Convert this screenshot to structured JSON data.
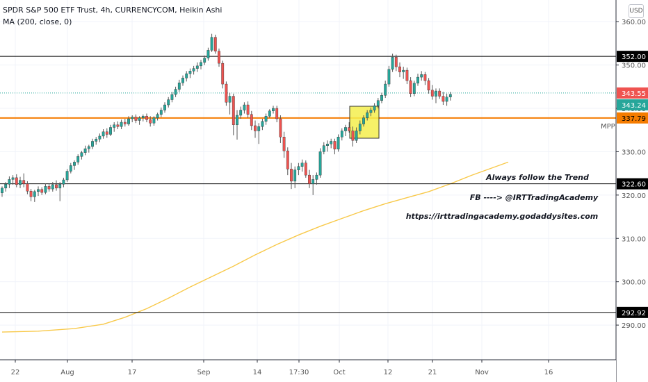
{
  "header": {
    "title": "SPDR S&P 500 ETF Trust, 4h, CURRENCYCOM, Heikin Ashi",
    "indicator": "MA (200, close, 0)",
    "currency_button": "USD"
  },
  "colors": {
    "up": "#26a69a",
    "down": "#ef5350",
    "ma": "#f8c94a",
    "mpp_line": "#f57c00",
    "hline": "#000000",
    "box_fill": "#f5ef4d",
    "grid": "#f0f3fa"
  },
  "chart_data": {
    "type": "candlestick",
    "title": "SPDR S&P 500 ETF Trust, 4h, CURRENCYCOM, Heikin Ashi",
    "ylim": [
      282,
      365
    ],
    "y_ticks": [
      "360.00",
      "350.00",
      "340.00",
      "330.00",
      "320.00",
      "310.00",
      "300.00",
      "290.00"
    ],
    "x_ticks": [
      "22",
      "Aug",
      "17",
      "Sep",
      "14",
      "17:30",
      "Oct",
      "12",
      "21",
      "Nov",
      "16"
    ],
    "horizontal_lines": [
      {
        "label": "352.00",
        "value": 352.0,
        "style": "black"
      },
      {
        "label": "322.60",
        "value": 322.6,
        "style": "black"
      },
      {
        "label": "292.92",
        "value": 292.92,
        "style": "black"
      },
      {
        "label": "337.79",
        "value": 337.79,
        "style": "mpp",
        "name": "MPP"
      }
    ],
    "price_labels": [
      {
        "label": "343.55",
        "value": 343.55,
        "color": "#ef5350"
      },
      {
        "label": "343.24",
        "value": 343.24,
        "color": "#26a69a"
      }
    ],
    "ohlc": [
      [
        320.5,
        322.0,
        319.6,
        321.6
      ],
      [
        321.6,
        323.0,
        320.8,
        322.5
      ],
      [
        322.5,
        324.3,
        321.6,
        323.6
      ],
      [
        323.6,
        324.6,
        322.4,
        324.0
      ],
      [
        324.0,
        324.8,
        321.8,
        322.4
      ],
      [
        322.4,
        324.2,
        321.6,
        323.4
      ],
      [
        323.4,
        325.0,
        321.8,
        322.6
      ],
      [
        322.6,
        323.2,
        320.2,
        320.9
      ],
      [
        320.9,
        321.4,
        318.6,
        319.6
      ],
      [
        319.6,
        321.2,
        318.4,
        320.8
      ],
      [
        320.8,
        322.0,
        319.8,
        321.3
      ],
      [
        321.3,
        321.8,
        320.0,
        320.6
      ],
      [
        320.6,
        322.6,
        320.2,
        322.0
      ],
      [
        322.0,
        322.6,
        320.8,
        321.4
      ],
      [
        321.4,
        323.0,
        320.8,
        322.4
      ],
      [
        322.4,
        323.4,
        321.0,
        321.6
      ],
      [
        321.6,
        323.0,
        318.6,
        322.5
      ],
      [
        322.5,
        324.0,
        321.8,
        323.5
      ],
      [
        323.5,
        326.0,
        323.0,
        325.5
      ],
      [
        325.5,
        327.4,
        325.0,
        326.8
      ],
      [
        326.8,
        328.0,
        325.8,
        327.6
      ],
      [
        327.6,
        329.4,
        327.0,
        328.9
      ],
      [
        328.9,
        330.2,
        328.2,
        329.8
      ],
      [
        329.8,
        331.4,
        329.2,
        330.7
      ],
      [
        330.7,
        331.6,
        329.8,
        331.2
      ],
      [
        331.2,
        333.0,
        330.6,
        332.4
      ],
      [
        332.4,
        333.4,
        331.6,
        332.9
      ],
      [
        332.9,
        334.2,
        332.2,
        333.6
      ],
      [
        333.6,
        335.2,
        333.0,
        334.6
      ],
      [
        334.6,
        335.4,
        333.2,
        334.0
      ],
      [
        334.0,
        336.2,
        333.6,
        335.6
      ],
      [
        335.6,
        336.8,
        334.6,
        336.2
      ],
      [
        336.2,
        337.0,
        335.2,
        335.8
      ],
      [
        335.8,
        337.4,
        335.2,
        336.8
      ],
      [
        336.8,
        337.6,
        335.8,
        336.4
      ],
      [
        336.4,
        338.2,
        336.0,
        337.6
      ],
      [
        337.6,
        338.4,
        336.8,
        338.0
      ],
      [
        338.0,
        338.6,
        336.6,
        337.2
      ],
      [
        337.2,
        338.2,
        336.2,
        337.8
      ],
      [
        337.8,
        338.6,
        337.0,
        338.2
      ],
      [
        338.2,
        338.8,
        336.8,
        337.4
      ],
      [
        337.4,
        338.2,
        335.8,
        336.6
      ],
      [
        336.6,
        338.2,
        336.0,
        337.8
      ],
      [
        337.8,
        339.0,
        337.2,
        338.6
      ],
      [
        338.6,
        340.2,
        338.0,
        339.6
      ],
      [
        339.6,
        341.4,
        339.0,
        340.8
      ],
      [
        340.8,
        342.6,
        340.2,
        342.0
      ],
      [
        342.0,
        343.8,
        341.4,
        343.2
      ],
      [
        343.2,
        345.0,
        342.6,
        344.4
      ],
      [
        344.4,
        346.6,
        343.8,
        345.9
      ],
      [
        345.9,
        347.6,
        345.2,
        347.0
      ],
      [
        347.0,
        348.6,
        346.2,
        348.0
      ],
      [
        348.0,
        349.2,
        347.0,
        348.6
      ],
      [
        348.6,
        349.8,
        347.8,
        349.2
      ],
      [
        349.2,
        350.6,
        348.4,
        349.8
      ],
      [
        349.8,
        351.2,
        349.0,
        350.6
      ],
      [
        350.6,
        352.2,
        350.0,
        351.6
      ],
      [
        351.6,
        354.0,
        351.0,
        353.4
      ],
      [
        353.4,
        357.2,
        353.0,
        356.4
      ],
      [
        356.4,
        357.0,
        352.6,
        353.2
      ],
      [
        353.2,
        353.8,
        349.6,
        350.4
      ],
      [
        350.4,
        351.0,
        344.6,
        345.6
      ],
      [
        345.6,
        346.2,
        340.6,
        341.4
      ],
      [
        341.4,
        343.6,
        338.6,
        342.8
      ],
      [
        342.8,
        343.4,
        333.8,
        336.2
      ],
      [
        336.2,
        339.6,
        332.8,
        338.4
      ],
      [
        338.4,
        340.4,
        337.6,
        339.6
      ],
      [
        339.6,
        341.4,
        338.8,
        340.8
      ],
      [
        340.8,
        341.6,
        337.8,
        338.6
      ],
      [
        338.6,
        339.4,
        335.0,
        336.0
      ],
      [
        336.0,
        337.2,
        333.2,
        334.8
      ],
      [
        334.8,
        336.6,
        331.8,
        335.8
      ],
      [
        335.8,
        337.6,
        335.0,
        337.0
      ],
      [
        337.0,
        338.8,
        336.2,
        338.2
      ],
      [
        338.2,
        339.8,
        337.8,
        339.4
      ],
      [
        339.4,
        340.6,
        338.8,
        340.0
      ],
      [
        340.0,
        340.6,
        336.8,
        337.6
      ],
      [
        337.6,
        338.4,
        332.0,
        333.4
      ],
      [
        333.4,
        334.6,
        328.6,
        330.2
      ],
      [
        330.2,
        331.0,
        324.6,
        326.0
      ],
      [
        326.0,
        327.4,
        321.4,
        323.2
      ],
      [
        323.2,
        326.6,
        321.6,
        325.8
      ],
      [
        325.8,
        327.4,
        324.6,
        326.6
      ],
      [
        326.6,
        328.2,
        325.4,
        327.4
      ],
      [
        327.4,
        328.0,
        324.0,
        324.6
      ],
      [
        324.6,
        325.8,
        321.6,
        322.6
      ],
      [
        322.6,
        324.6,
        320.0,
        323.6
      ],
      [
        323.6,
        325.2,
        322.4,
        324.6
      ],
      [
        324.6,
        330.8,
        324.0,
        330.0
      ],
      [
        330.0,
        332.2,
        329.4,
        331.4
      ],
      [
        331.4,
        332.6,
        330.0,
        331.8
      ],
      [
        331.8,
        333.0,
        330.8,
        332.4
      ],
      [
        332.4,
        333.0,
        329.4,
        330.6
      ],
      [
        330.6,
        334.0,
        330.0,
        333.4
      ],
      [
        333.4,
        335.4,
        332.6,
        334.8
      ],
      [
        334.8,
        336.2,
        333.6,
        335.6
      ],
      [
        335.6,
        336.8,
        334.4,
        334.8
      ],
      [
        334.8,
        335.8,
        331.2,
        332.6
      ],
      [
        332.6,
        335.6,
        332.0,
        334.8
      ],
      [
        334.8,
        337.2,
        334.0,
        336.4
      ],
      [
        336.4,
        338.4,
        335.8,
        337.8
      ],
      [
        337.8,
        339.6,
        337.2,
        339.0
      ],
      [
        339.0,
        340.2,
        338.2,
        339.6
      ],
      [
        339.6,
        341.2,
        339.0,
        340.6
      ],
      [
        340.6,
        342.4,
        340.0,
        341.8
      ],
      [
        341.8,
        343.6,
        341.2,
        343.0
      ],
      [
        343.0,
        346.4,
        342.4,
        345.6
      ],
      [
        345.6,
        349.8,
        345.0,
        349.0
      ],
      [
        349.0,
        352.6,
        348.4,
        351.8
      ],
      [
        351.8,
        352.4,
        348.6,
        349.6
      ],
      [
        349.6,
        350.6,
        347.2,
        348.4
      ],
      [
        348.4,
        349.6,
        346.8,
        348.8
      ],
      [
        348.8,
        349.4,
        345.6,
        346.4
      ],
      [
        346.4,
        347.2,
        342.6,
        343.4
      ],
      [
        343.4,
        346.4,
        342.8,
        345.8
      ],
      [
        345.8,
        348.0,
        345.2,
        347.2
      ],
      [
        347.2,
        348.6,
        346.4,
        347.8
      ],
      [
        347.8,
        348.4,
        345.4,
        346.4
      ],
      [
        346.4,
        347.0,
        343.4,
        344.2
      ],
      [
        344.2,
        345.4,
        342.0,
        342.8
      ],
      [
        342.8,
        344.6,
        341.2,
        344.0
      ],
      [
        344.0,
        344.6,
        342.2,
        342.8
      ],
      [
        342.8,
        343.8,
        340.8,
        341.6
      ],
      [
        341.6,
        343.4,
        340.6,
        342.6
      ],
      [
        342.6,
        343.8,
        341.8,
        343.24
      ]
    ],
    "ma_200": [
      [
        0,
        288.4
      ],
      [
        10,
        288.6
      ],
      [
        20,
        289.2
      ],
      [
        28,
        290.2
      ],
      [
        34,
        291.8
      ],
      [
        40,
        293.8
      ],
      [
        46,
        296.2
      ],
      [
        52,
        298.8
      ],
      [
        58,
        301.2
      ],
      [
        64,
        303.6
      ],
      [
        70,
        306.2
      ],
      [
        76,
        308.6
      ],
      [
        82,
        310.8
      ],
      [
        88,
        312.8
      ],
      [
        94,
        314.6
      ],
      [
        100,
        316.4
      ],
      [
        106,
        318.0
      ],
      [
        112,
        319.4
      ],
      [
        118,
        320.8
      ],
      [
        124,
        322.6
      ],
      [
        130,
        324.6
      ],
      [
        136,
        326.4
      ],
      [
        140,
        327.6
      ]
    ]
  },
  "annotations": {
    "line1": "Always follow the Trend",
    "line2": "FB ----> @IRTTradingAcademy",
    "line3": "https://irttradingacademy.godaddysites.com"
  }
}
